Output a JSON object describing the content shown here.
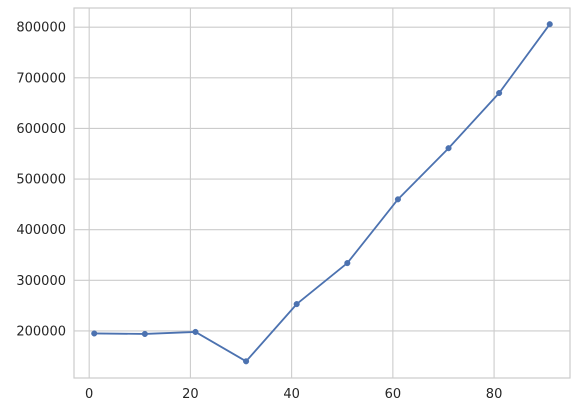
{
  "chart_data": {
    "type": "line",
    "title": "",
    "xlabel": "",
    "ylabel": "",
    "grid": true,
    "legend": "none",
    "xlim": [
      -3,
      95
    ],
    "ylim": [
      107000,
      838000
    ],
    "x_ticks": [
      0,
      20,
      40,
      60,
      80
    ],
    "x_tick_labels": [
      "0",
      "20",
      "40",
      "60",
      "80"
    ],
    "y_ticks": [
      200000,
      300000,
      400000,
      500000,
      600000,
      700000,
      800000
    ],
    "y_tick_labels": [
      "200000",
      "300000",
      "400000",
      "500000",
      "600000",
      "700000",
      "800000"
    ],
    "series": [
      {
        "color": "#4c72b0",
        "marker": "circle",
        "x": [
          1,
          11,
          21,
          31,
          41,
          51,
          61,
          71,
          81,
          91
        ],
        "y": [
          195000,
          194000,
          198000,
          140000,
          253000,
          334000,
          460000,
          561000,
          670000,
          806000
        ]
      }
    ]
  },
  "colors": {
    "background": "#ffffff",
    "grid": "#cccccc",
    "axes_edge": "#cccccc",
    "tick_text": "#262626",
    "series": "#4c72b0"
  }
}
